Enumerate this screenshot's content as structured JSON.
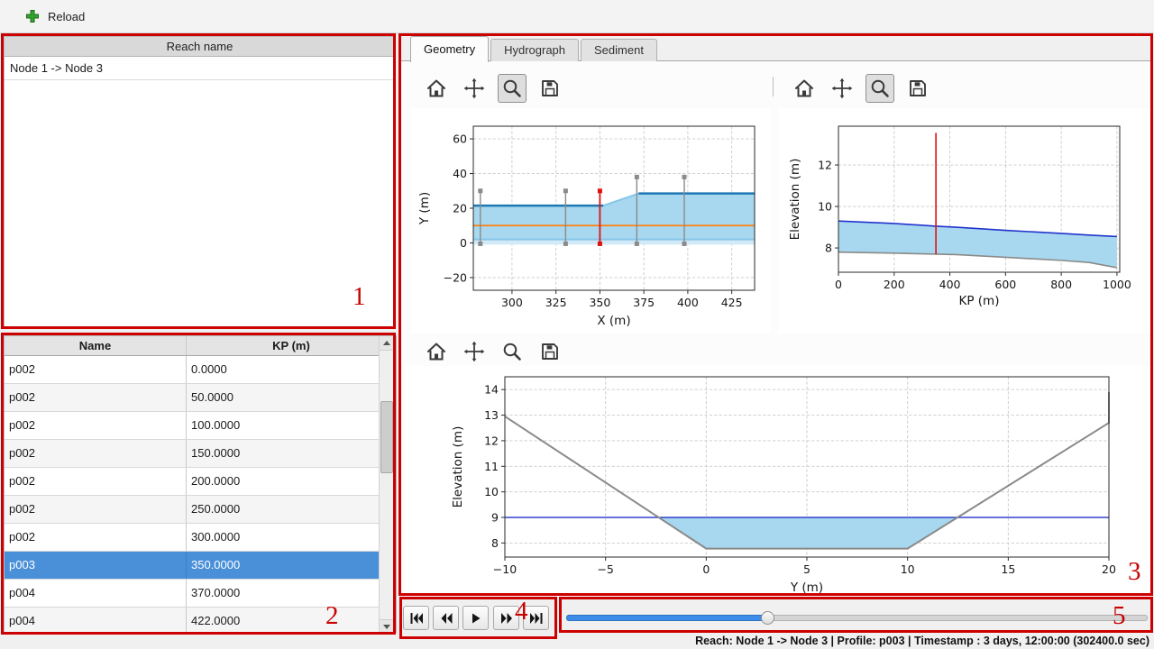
{
  "toolbar": {
    "reload_label": "Reload"
  },
  "reach_panel": {
    "header": "Reach name",
    "items": [
      "Node 1 -> Node 3"
    ]
  },
  "profile_table": {
    "columns": [
      "Name",
      "KP (m)"
    ],
    "rows": [
      [
        "p002",
        "0.0000"
      ],
      [
        "p002",
        "50.0000"
      ],
      [
        "p002",
        "100.0000"
      ],
      [
        "p002",
        "150.0000"
      ],
      [
        "p002",
        "200.0000"
      ],
      [
        "p002",
        "250.0000"
      ],
      [
        "p002",
        "300.0000"
      ],
      [
        "p003",
        "350.0000"
      ],
      [
        "p004",
        "370.0000"
      ],
      [
        "p004",
        "422.0000"
      ]
    ],
    "selected_row_index": 7
  },
  "tabs": [
    {
      "label": "Geometry",
      "active": true
    },
    {
      "label": "Hydrograph",
      "active": false
    },
    {
      "label": "Sediment",
      "active": false
    }
  ],
  "figure_toolbars": [
    {
      "name": "plan-view-toolbar",
      "icons": [
        "home",
        "pan",
        "zoom",
        "save"
      ],
      "active_tool": "zoom"
    },
    {
      "name": "long-profile-toolbar",
      "icons": [
        "home",
        "pan",
        "zoom",
        "save"
      ],
      "active_tool": "zoom"
    },
    {
      "name": "cross-section-toolbar",
      "icons": [
        "home",
        "pan",
        "zoom",
        "save"
      ],
      "active_tool": null
    }
  ],
  "playback": {
    "buttons": [
      "skip-to-start",
      "step-back",
      "play",
      "step-forward",
      "skip-to-end"
    ]
  },
  "slider": {
    "fraction": 0.345
  },
  "status_bar": {
    "text": "Reach: Node 1 -> Node 3 | Profile: p003 | Timestamp : 3 days, 12:00:00 (302400.0 sec)"
  },
  "annotations": [
    {
      "label": "1"
    },
    {
      "label": "2"
    },
    {
      "label": "3"
    },
    {
      "label": "4"
    },
    {
      "label": "5"
    }
  ],
  "colors": {
    "selection_blue": "#4a90d9",
    "slider_blue": "#3d8de8",
    "annotation_red": "#cc0000",
    "water_fill": "#a8d8ef",
    "water_edge_blue": "#1f77b4",
    "profile_water_blue": "#2233cc",
    "bed_gray": "#8a8a8a",
    "thalweg_orange": "#ff7f0e",
    "marker_red": "#dd1111"
  },
  "chart_data": [
    {
      "id": "plan_view",
      "type": "line",
      "title": "",
      "xlabel": "X (m)",
      "ylabel": "Y (m)",
      "xlim": [
        278,
        438
      ],
      "ylim": [
        -27.3,
        67.3
      ],
      "xticks": [
        300,
        325,
        350,
        375,
        400,
        425
      ],
      "yticks": [
        -20,
        0,
        20,
        40,
        60
      ],
      "grid": true,
      "series": [
        {
          "name": "lower-bank-band",
          "kind": "fill",
          "x": [
            278,
            438
          ],
          "y1": [
            -1,
            -1
          ],
          "y2": [
            2,
            2
          ],
          "color": "#d2eaf7"
        },
        {
          "name": "water-surface-band",
          "kind": "fill",
          "x": [
            278,
            352,
            372,
            438
          ],
          "y1": [
            2,
            2,
            2,
            2
          ],
          "y2": [
            21.5,
            21.5,
            28.5,
            28.5
          ],
          "color": "#a8d8ef"
        },
        {
          "name": "left-bank-line",
          "kind": "line",
          "x": [
            278,
            438
          ],
          "y": [
            2,
            2
          ],
          "color": "#86c5e8",
          "width": 2
        },
        {
          "name": "water-edge-left",
          "kind": "line",
          "x": [
            278,
            352
          ],
          "y": [
            21.5,
            21.5
          ],
          "color": "#1f77b4",
          "width": 2.5
        },
        {
          "name": "water-edge-transition",
          "kind": "line",
          "x": [
            352,
            372
          ],
          "y": [
            21.5,
            28.5
          ],
          "color": "#86c5e8",
          "width": 2
        },
        {
          "name": "water-edge-right",
          "kind": "line",
          "x": [
            372,
            438
          ],
          "y": [
            28.5,
            28.5
          ],
          "color": "#1f77b4",
          "width": 2.5
        },
        {
          "name": "thalweg-line",
          "kind": "line",
          "x": [
            278,
            438
          ],
          "y": [
            10,
            10
          ],
          "color": "#ff7f0e",
          "width": 1.8
        },
        {
          "name": "profile-marker",
          "kind": "vline",
          "x": 282,
          "y0": -0.5,
          "y1": 30,
          "color": "#8a8a8a",
          "width": 1.4,
          "marker": true
        },
        {
          "name": "profile-marker",
          "kind": "vline",
          "x": 330.5,
          "y0": -0.5,
          "y1": 30,
          "color": "#8a8a8a",
          "width": 1.4,
          "marker": true
        },
        {
          "name": "selected-profile-marker",
          "kind": "vline",
          "x": 350,
          "y0": -0.5,
          "y1": 30,
          "color": "#dd1111",
          "width": 1.8,
          "marker": true
        },
        {
          "name": "profile-marker",
          "kind": "vline",
          "x": 371,
          "y0": -0.5,
          "y1": 38,
          "color": "#8a8a8a",
          "width": 1.4,
          "marker": true
        },
        {
          "name": "profile-marker",
          "kind": "vline",
          "x": 398,
          "y0": -0.5,
          "y1": 38,
          "color": "#8a8a8a",
          "width": 1.4,
          "marker": true
        }
      ]
    },
    {
      "id": "long_profile",
      "type": "line",
      "title": "",
      "xlabel": "KP (m)",
      "ylabel": "Elevation (m)",
      "xlim": [
        0,
        1010
      ],
      "ylim": [
        6.83,
        13.87
      ],
      "xticks": [
        0,
        200,
        400,
        600,
        800,
        1000
      ],
      "yticks": [
        8,
        10,
        12
      ],
      "grid": true,
      "series": [
        {
          "name": "water-area",
          "kind": "fill",
          "x": [
            0,
            200,
            350,
            422,
            600,
            800,
            900,
            1000
          ],
          "y1": [
            7.8,
            7.75,
            7.7,
            7.68,
            7.55,
            7.4,
            7.3,
            7.05
          ],
          "y2": [
            9.3,
            9.18,
            9.05,
            9.0,
            8.85,
            8.7,
            8.62,
            8.55
          ],
          "color": "#a8d8ef"
        },
        {
          "name": "water-surface",
          "kind": "line",
          "x": [
            0,
            200,
            350,
            422,
            600,
            800,
            900,
            1000
          ],
          "y": [
            9.3,
            9.18,
            9.05,
            9.0,
            8.85,
            8.7,
            8.62,
            8.55
          ],
          "color": "#2233cc",
          "width": 1.6
        },
        {
          "name": "bed-level",
          "kind": "line",
          "x": [
            0,
            200,
            350,
            422,
            600,
            800,
            900,
            1000
          ],
          "y": [
            7.8,
            7.75,
            7.7,
            7.68,
            7.55,
            7.4,
            7.3,
            7.05
          ],
          "color": "#8a8a8a",
          "width": 1.6
        },
        {
          "name": "selected-profile-marker",
          "kind": "vline",
          "x": 350,
          "y0": 7.7,
          "y1": 13.55,
          "color": "#dd1111",
          "width": 1.6,
          "marker": false
        }
      ]
    },
    {
      "id": "cross_section",
      "type": "line",
      "title": "",
      "xlabel": "Y (m)",
      "ylabel": "Elevation (m)",
      "xlim": [
        -10,
        20
      ],
      "ylim": [
        7.45,
        14.5
      ],
      "xticks": [
        -10,
        -5,
        0,
        5,
        10,
        15,
        20
      ],
      "yticks": [
        8,
        9,
        10,
        11,
        12,
        13,
        14
      ],
      "grid": true,
      "series": [
        {
          "name": "water-area",
          "kind": "polygon",
          "points": [
            [
              -2.36,
              9
            ],
            [
              12.48,
              9
            ],
            [
              10,
              7.78
            ],
            [
              0,
              7.78
            ]
          ],
          "color": "#a8d8ef"
        },
        {
          "name": "water-surface",
          "kind": "line",
          "x": [
            -10,
            20
          ],
          "y": [
            9,
            9
          ],
          "color": "#2233cc",
          "width": 1.4
        },
        {
          "name": "bed-profile",
          "kind": "line",
          "x": [
            -10,
            0,
            10,
            20,
            20
          ],
          "y": [
            12.95,
            7.78,
            7.78,
            12.7,
            13.9
          ],
          "color": "#8a8a8a",
          "width": 2
        }
      ]
    }
  ]
}
